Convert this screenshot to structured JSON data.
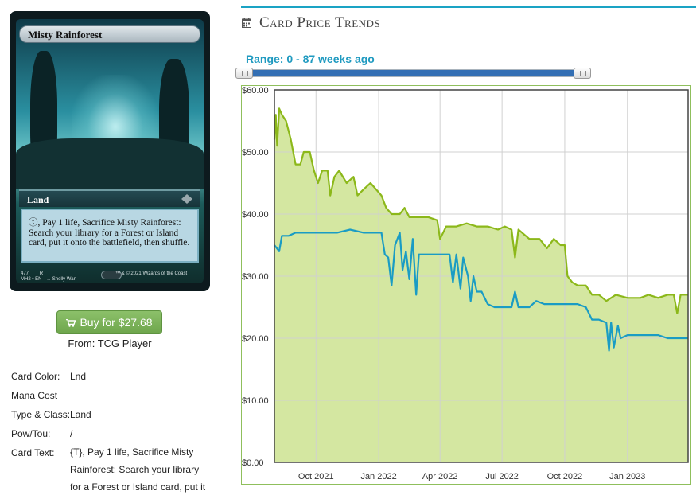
{
  "card": {
    "name": "Misty Rainforest",
    "type_line": "Land",
    "rules_text": "ⓣ, Pay 1 life, Sacrifice Misty Rainforest: Search your library for a Forest or Island card, put it onto the battlefield, then shuffle.",
    "collector_number": "477",
    "rarity_letter": "R",
    "set_lang": "MH2 • EN",
    "artist": "→ Shelly Wan",
    "copyright": "™ & © 2021 Wizards of the Coast"
  },
  "buy": {
    "label": "Buy for $27.68",
    "from_text": "From: TCG Player",
    "icon": "shopping-cart-icon"
  },
  "details": {
    "color_label": "Card Color:",
    "color_value": "Lnd",
    "mana_label": "Mana Cost",
    "mana_value": "",
    "type_label": "Type & Class:",
    "type_value": "Land",
    "pt_label": "Pow/Tou:",
    "pt_value": "/",
    "text_label": "Card Text:",
    "text_value": "{T}, Pay 1 life, Sacrifice Misty Rainforest: Search your library for a Forest or Island card, put it"
  },
  "trends": {
    "title": "Card Price Trends",
    "icon": "calendar-icon",
    "range_label": "Range: 0 - 87 weeks ago",
    "accent_color": "#1aa3c4"
  },
  "chart_data": {
    "type": "line",
    "title": "",
    "xlabel": "",
    "ylabel": "",
    "ylim": [
      0,
      60
    ],
    "xlim": [
      "2021-08-01",
      "2023-03-31"
    ],
    "yticks": [
      "$0.00",
      "$10.00",
      "$20.00",
      "$30.00",
      "$40.00",
      "$50.00",
      "$60.00"
    ],
    "xticks": [
      "Oct 2021",
      "Jan 2022",
      "Apr 2022",
      "Jul 2022",
      "Oct 2022",
      "Jan 2023"
    ],
    "grid": true,
    "series": [
      {
        "color": "#8cb81a",
        "fill": "#d4e7a1",
        "points": [
          [
            "2021-08-01",
            52
          ],
          [
            "2021-08-03",
            56
          ],
          [
            "2021-08-05",
            51
          ],
          [
            "2021-08-08",
            57
          ],
          [
            "2021-08-12",
            56
          ],
          [
            "2021-08-18",
            55
          ],
          [
            "2021-08-25",
            52
          ],
          [
            "2021-09-01",
            48
          ],
          [
            "2021-09-08",
            48
          ],
          [
            "2021-09-13",
            50
          ],
          [
            "2021-09-22",
            50
          ],
          [
            "2021-09-28",
            47
          ],
          [
            "2021-10-04",
            45
          ],
          [
            "2021-10-10",
            47
          ],
          [
            "2021-10-18",
            47
          ],
          [
            "2021-10-22",
            43
          ],
          [
            "2021-10-28",
            46
          ],
          [
            "2021-11-04",
            47
          ],
          [
            "2021-11-15",
            45
          ],
          [
            "2021-11-25",
            46
          ],
          [
            "2021-12-01",
            43
          ],
          [
            "2021-12-10",
            44
          ],
          [
            "2021-12-20",
            45
          ],
          [
            "2022-01-05",
            43
          ],
          [
            "2022-01-12",
            41
          ],
          [
            "2022-01-20",
            40
          ],
          [
            "2022-02-01",
            40
          ],
          [
            "2022-02-08",
            41
          ],
          [
            "2022-02-15",
            39.5
          ],
          [
            "2022-03-01",
            39.5
          ],
          [
            "2022-03-15",
            39.5
          ],
          [
            "2022-03-28",
            39
          ],
          [
            "2022-04-01",
            36
          ],
          [
            "2022-04-10",
            38
          ],
          [
            "2022-04-25",
            38
          ],
          [
            "2022-05-10",
            38.5
          ],
          [
            "2022-05-25",
            38
          ],
          [
            "2022-06-10",
            38
          ],
          [
            "2022-06-25",
            37.5
          ],
          [
            "2022-07-05",
            38
          ],
          [
            "2022-07-15",
            37.5
          ],
          [
            "2022-07-20",
            33
          ],
          [
            "2022-07-25",
            37.5
          ],
          [
            "2022-08-10",
            36
          ],
          [
            "2022-08-25",
            36
          ],
          [
            "2022-09-05",
            34.5
          ],
          [
            "2022-09-15",
            36
          ],
          [
            "2022-09-25",
            35
          ],
          [
            "2022-10-01",
            35
          ],
          [
            "2022-10-05",
            30
          ],
          [
            "2022-10-12",
            29
          ],
          [
            "2022-10-20",
            28.5
          ],
          [
            "2022-11-01",
            28.5
          ],
          [
            "2022-11-10",
            27
          ],
          [
            "2022-11-20",
            27
          ],
          [
            "2022-12-01",
            26
          ],
          [
            "2022-12-15",
            27
          ],
          [
            "2023-01-01",
            26.5
          ],
          [
            "2023-01-20",
            26.5
          ],
          [
            "2023-02-01",
            27
          ],
          [
            "2023-02-15",
            26.5
          ],
          [
            "2023-03-01",
            27
          ],
          [
            "2023-03-10",
            27
          ],
          [
            "2023-03-15",
            24
          ],
          [
            "2023-03-20",
            27
          ],
          [
            "2023-03-31",
            27
          ]
        ]
      },
      {
        "color": "#1a9cc4",
        "points": [
          [
            "2021-08-01",
            35
          ],
          [
            "2021-08-08",
            34
          ],
          [
            "2021-08-12",
            36.5
          ],
          [
            "2021-08-22",
            36.5
          ],
          [
            "2021-09-01",
            37
          ],
          [
            "2021-09-20",
            37
          ],
          [
            "2021-10-10",
            37
          ],
          [
            "2021-11-01",
            37
          ],
          [
            "2021-11-20",
            37.5
          ],
          [
            "2021-12-10",
            37
          ],
          [
            "2022-01-05",
            37
          ],
          [
            "2022-01-10",
            33.5
          ],
          [
            "2022-01-15",
            33
          ],
          [
            "2022-01-20",
            28.5
          ],
          [
            "2022-01-25",
            35
          ],
          [
            "2022-02-01",
            37
          ],
          [
            "2022-02-05",
            31
          ],
          [
            "2022-02-10",
            34
          ],
          [
            "2022-02-15",
            29.5
          ],
          [
            "2022-02-20",
            36
          ],
          [
            "2022-02-25",
            27
          ],
          [
            "2022-03-01",
            33.5
          ],
          [
            "2022-03-15",
            33.5
          ],
          [
            "2022-04-01",
            33.5
          ],
          [
            "2022-04-15",
            33.5
          ],
          [
            "2022-04-20",
            29
          ],
          [
            "2022-04-25",
            33.5
          ],
          [
            "2022-05-01",
            28
          ],
          [
            "2022-05-05",
            33
          ],
          [
            "2022-05-12",
            30
          ],
          [
            "2022-05-16",
            26
          ],
          [
            "2022-05-20",
            30
          ],
          [
            "2022-05-25",
            27.5
          ],
          [
            "2022-06-01",
            27.5
          ],
          [
            "2022-06-10",
            25.5
          ],
          [
            "2022-06-20",
            25
          ],
          [
            "2022-07-01",
            25
          ],
          [
            "2022-07-15",
            25
          ],
          [
            "2022-07-20",
            27.5
          ],
          [
            "2022-07-25",
            25
          ],
          [
            "2022-08-10",
            25
          ],
          [
            "2022-08-20",
            26
          ],
          [
            "2022-09-01",
            25.5
          ],
          [
            "2022-09-15",
            25.5
          ],
          [
            "2022-10-01",
            25.5
          ],
          [
            "2022-10-20",
            25.5
          ],
          [
            "2022-11-01",
            25
          ],
          [
            "2022-11-10",
            23
          ],
          [
            "2022-11-20",
            23
          ],
          [
            "2022-12-01",
            22.5
          ],
          [
            "2022-12-05",
            18
          ],
          [
            "2022-12-08",
            22.5
          ],
          [
            "2022-12-12",
            18.5
          ],
          [
            "2022-12-18",
            22
          ],
          [
            "2022-12-22",
            20
          ],
          [
            "2023-01-01",
            20.5
          ],
          [
            "2023-01-20",
            20.5
          ],
          [
            "2023-02-01",
            20.5
          ],
          [
            "2023-02-15",
            20.5
          ],
          [
            "2023-03-01",
            20
          ],
          [
            "2023-03-15",
            20
          ],
          [
            "2023-03-31",
            20
          ]
        ]
      }
    ]
  }
}
